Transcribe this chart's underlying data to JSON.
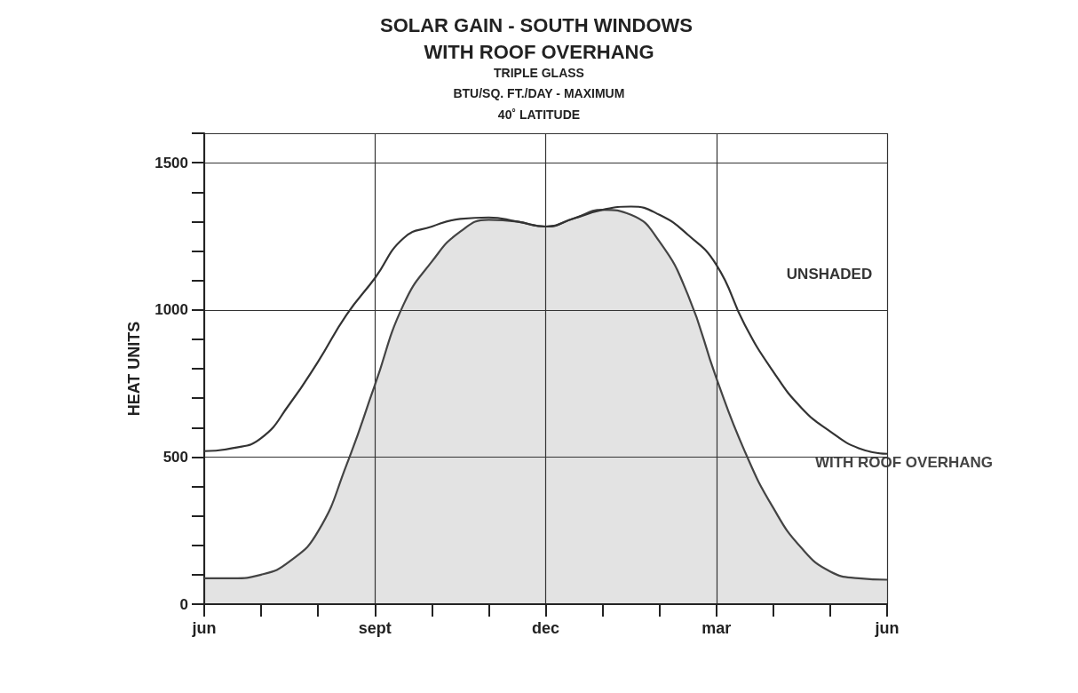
{
  "chart_data": {
    "type": "line",
    "title": "SOLAR GAIN - SOUTH WINDOWS WITH ROOF OVERHANG",
    "subtitle": "TRIPLE GLASS",
    "annotations": [
      "BTU/SQ. FT./DAY - MAXIMUM",
      "40˚ LATITUDE"
    ],
    "ylabel": "HEAT UNITS",
    "categories": [
      "jun",
      null,
      null,
      null,
      null,
      null,
      "sept",
      null,
      null,
      null,
      null,
      null,
      "dec",
      null,
      null,
      null,
      null,
      null,
      "mar",
      null,
      null,
      null,
      null,
      null,
      "jun"
    ],
    "series": [
      {
        "name": "UNSHADED",
        "type": "line",
        "color": "#333333",
        "values": [
          520,
          530,
          564,
          680,
          824,
          983,
          1108,
          1243,
          1283,
          1309,
          1314,
          1300,
          1283,
          1311,
          1340,
          1351,
          1323,
          1255,
          1153,
          949,
          790,
          666,
          587,
          530,
          511
        ]
      },
      {
        "name": "WITH ROOF OVERHANG",
        "type": "area",
        "color": "#444444",
        "values": [
          88,
          88,
          100,
          145,
          247,
          473,
          745,
          1017,
          1164,
          1266,
          1306,
          1300,
          1283,
          1311,
          1340,
          1323,
          1232,
          1051,
          768,
          519,
          327,
          190,
          111,
          88,
          83
        ]
      }
    ],
    "ylim": [
      0,
      1600
    ],
    "yticks": [
      0,
      {
        "value": 100,
        "label": null
      },
      {
        "value": 200,
        "label": null
      },
      {
        "value": 300,
        "label": null
      },
      {
        "value": 400,
        "label": null
      },
      500,
      {
        "value": 600,
        "label": null
      },
      {
        "value": 700,
        "label": null
      },
      {
        "value": 800,
        "label": null
      },
      {
        "value": 900,
        "label": null
      },
      1000,
      {
        "value": 1100,
        "label": null
      },
      {
        "value": 1200,
        "label": null
      },
      {
        "value": 1300,
        "label": null
      },
      {
        "value": 1400,
        "label": null
      },
      1500,
      {
        "value": 1600,
        "label": null
      }
    ],
    "grid": true,
    "legend": false,
    "marker": "none",
    "line_style": "solid"
  }
}
